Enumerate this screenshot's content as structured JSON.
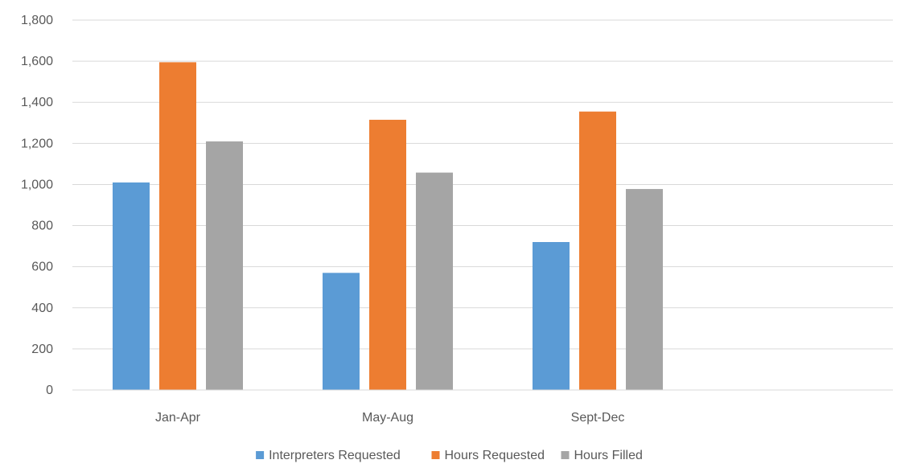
{
  "chart_data": {
    "type": "bar",
    "categories": [
      "Jan-Apr",
      "May-Aug",
      "Sept-Dec"
    ],
    "series": [
      {
        "name": "Interpreters Requested",
        "values": [
          1010,
          570,
          720
        ],
        "color": "#5B9BD5"
      },
      {
        "name": "Hours Requested",
        "values": [
          1595,
          1315,
          1355
        ],
        "color": "#ED7D31"
      },
      {
        "name": "Hours Filled",
        "values": [
          1210,
          1058,
          978
        ],
        "color": "#A5A5A5"
      }
    ],
    "y_ticks": [
      "0",
      "200",
      "400",
      "600",
      "800",
      "1,000",
      "1,200",
      "1,400",
      "1,600",
      "1,800"
    ],
    "ylim": [
      0,
      1800
    ],
    "grid": true,
    "legend_position": "bottom"
  }
}
